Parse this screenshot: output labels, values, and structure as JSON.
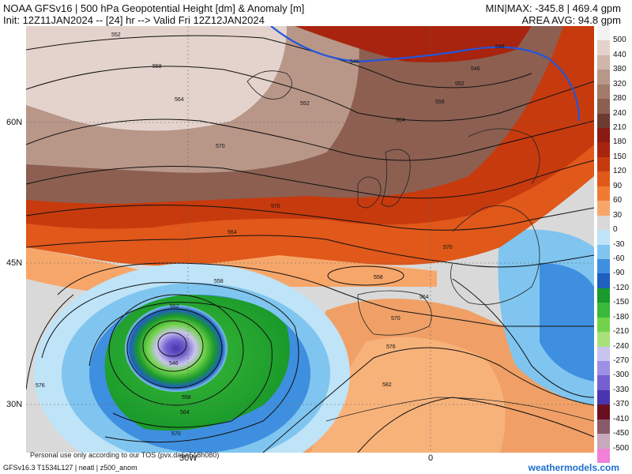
{
  "header": {
    "title_line1": "NOAA GFSv16 | 500 hPa Geopotential Height [dm] & Anomaly [m]",
    "title_line2": "Init: 12Z11JAN2024 -- [24] hr --> Valid Fri 12Z12JAN2024",
    "stats_line1": "MIN|MAX: -345.8 | 469.4 gpm",
    "stats_line2": "AREA AVG: 94.8 gpm"
  },
  "axes": {
    "lat_labels": [
      "60N",
      "45N",
      "30N"
    ],
    "lon_labels": [
      "30W",
      "0"
    ]
  },
  "colorbar": {
    "labels": [
      "500",
      "440",
      "380",
      "320",
      "280",
      "240",
      "210",
      "180",
      "150",
      "120",
      "90",
      "60",
      "30",
      "0",
      "-30",
      "-60",
      "-90",
      "-120",
      "-150",
      "-180",
      "-210",
      "-240",
      "-270",
      "-300",
      "-330",
      "-370",
      "-410",
      "-450",
      "-500"
    ],
    "colors": [
      "#f2f2f2",
      "#e4d3cc",
      "#cfb5aa",
      "#b89789",
      "#a27b6b",
      "#8c5f51",
      "#6d3a30",
      "#8a1a12",
      "#a8240e",
      "#c73a0e",
      "#e0581a",
      "#f07a33",
      "#f7a66a",
      "#d9d9d9",
      "#bfe3f7",
      "#7fc5ef",
      "#3f8fe0",
      "#1f5fc0",
      "#1a9a2a",
      "#3ab83a",
      "#72d34a",
      "#a8e07a",
      "#c9c4ee",
      "#9d8fe3",
      "#7460d0",
      "#4a34b0",
      "#6a0f20",
      "#8a5a6a",
      "#c8a8bc",
      "#f080d8"
    ]
  },
  "contour_labels": [
    "552",
    "558",
    "564",
    "570",
    "546",
    "552",
    "558",
    "564",
    "570",
    "546",
    "552",
    "558",
    "564",
    "570",
    "558",
    "564",
    "570",
    "576",
    "582",
    "552",
    "546",
    "558",
    "564",
    "570",
    "576",
    "546"
  ],
  "footer": {
    "tos": "Personal use only according to our TOS (pvx.da6a518h080)",
    "model_info": "GFSv16.3 T1534L127 | neatl | z500_anom",
    "brand": "weathermodels.com"
  }
}
